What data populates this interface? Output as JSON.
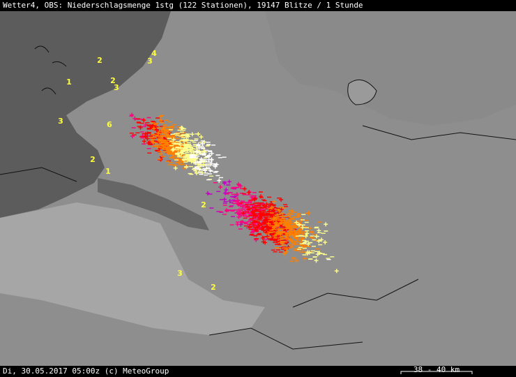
{
  "header": {
    "title": "Wetter4, OBS: Niederschlagsmenge 1stg (122 Stationen), 19147 Blitze / 1 Stunde"
  },
  "footer": {
    "text": "Di, 30.05.2017 05:00z (c) MeteoGroup",
    "scale": "38 - 40 km"
  },
  "stations": [
    4,
    3,
    2,
    1,
    2,
    3,
    3,
    6,
    2,
    1,
    2,
    3,
    2
  ]
}
